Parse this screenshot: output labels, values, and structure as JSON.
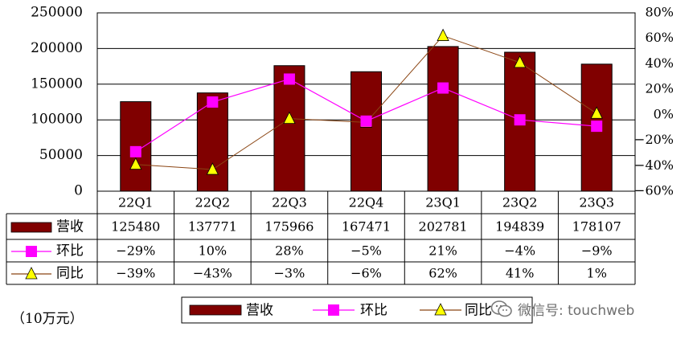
{
  "chart_data": {
    "type": "bar+line",
    "categories": [
      "22Q1",
      "22Q2",
      "22Q3",
      "22Q4",
      "23Q1",
      "23Q2",
      "23Q3"
    ],
    "series": [
      {
        "name": "营收",
        "kind": "bar",
        "axis": "left",
        "color": "#800000",
        "values": [
          125480,
          137771,
          175966,
          167471,
          202781,
          194839,
          178107
        ],
        "labels": [
          "125480",
          "137771",
          "175966",
          "167471",
          "202781",
          "194839",
          "178107"
        ]
      },
      {
        "name": "环比",
        "kind": "line",
        "axis": "right",
        "marker": "square",
        "color": "#ff00ff",
        "values": [
          -29,
          10,
          28,
          -5,
          21,
          -4,
          -9
        ],
        "labels": [
          "−29%",
          "10%",
          "28%",
          "−5%",
          "21%",
          "−4%",
          "−9%"
        ]
      },
      {
        "name": "同比",
        "kind": "line",
        "axis": "right",
        "marker": "triangle",
        "color": "#8b4513",
        "markerColor": "#ffff00",
        "values": [
          -39,
          -43,
          -3,
          -6,
          62,
          41,
          1
        ],
        "labels": [
          "−39%",
          "−43%",
          "−3%",
          "−6%",
          "62%",
          "41%",
          "1%"
        ]
      }
    ],
    "left_axis": {
      "min": 0,
      "max": 250000,
      "step": 50000,
      "ticks": [
        "0",
        "50000",
        "100000",
        "150000",
        "200000",
        "250000"
      ]
    },
    "right_axis": {
      "min": -60,
      "max": 80,
      "step": 20,
      "ticks": [
        "−60%",
        "−40%",
        "−20%",
        "0%",
        "20%",
        "40%",
        "60%",
        "80%"
      ]
    },
    "gridlines": true,
    "legend_position": "bottom",
    "data_table": true
  },
  "unit_label": "（10万元）",
  "watermark": {
    "text": "微信号: touchweb",
    "icon": "wechat-icon"
  }
}
